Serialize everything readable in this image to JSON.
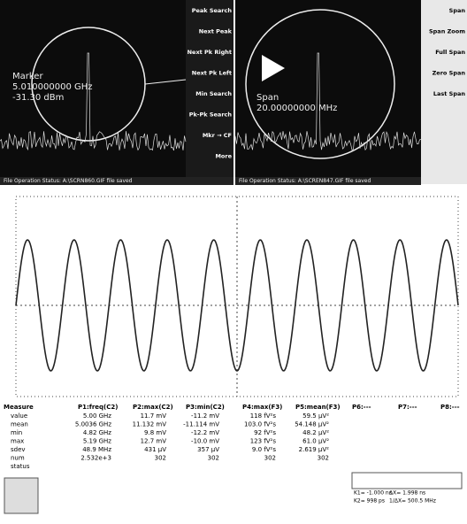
{
  "analyzer_left": {
    "marker_label": "Marker",
    "marker_freq": "5.010000000 GHz",
    "marker_level": "-31.30 dBm",
    "status": "File Operation Status: A:\\SCRN860.GIF file saved",
    "softkeys": [
      "Peak Search",
      "Next Peak",
      "Next Pk Right",
      "Next Pk Left",
      "Min Search",
      "Pk-Pk Search",
      "Mkr → CF",
      "More"
    ]
  },
  "analyzer_right": {
    "span_label": "Span",
    "span_value": "20.00000000 MHz",
    "status": "File Operation Status: A:\\SCREN847.GIF file saved",
    "softkeys": [
      "Span",
      "Span Zoom",
      "Full Span",
      "Zero Span",
      "Last Span"
    ]
  },
  "scope": {
    "measure": {
      "header": [
        "Measure",
        "P1:freq(C2)",
        "P2:max(C2)",
        "P3:min(C2)",
        "P4:max(F3)",
        "P5:mean(F3)",
        "P6:---",
        "P7:---",
        "P8:---"
      ],
      "rows": [
        [
          "value",
          "5.00 GHz",
          "11.7 mV",
          "-11.2 mV",
          "118 fV²s",
          "59.5 µV²"
        ],
        [
          "mean",
          "5.0036 GHz",
          "11.132 mV",
          "-11.114 mV",
          "103.0 fV²s",
          "54.148 µV²"
        ],
        [
          "min",
          "4.82 GHz",
          "9.8 mV",
          "-12.2 mV",
          "92 fV²s",
          "48.2 µV²"
        ],
        [
          "max",
          "5.19 GHz",
          "12.7 mV",
          "-10.0 mV",
          "123 fV²s",
          "61.0 µV²"
        ],
        [
          "sdev",
          "48.9 MHz",
          "431 µV",
          "357 µV",
          "9.0 fV²s",
          "2.619 µV²"
        ],
        [
          "num",
          "2.532e+3",
          "302",
          "302",
          "302",
          "302"
        ],
        [
          "status"
        ]
      ]
    },
    "cursors": [
      "K1= -1.000 ns",
      "ΔX= 1.998 ns",
      "K2= 998 ps",
      "1/ΔX= 500.5 MHz"
    ]
  }
}
